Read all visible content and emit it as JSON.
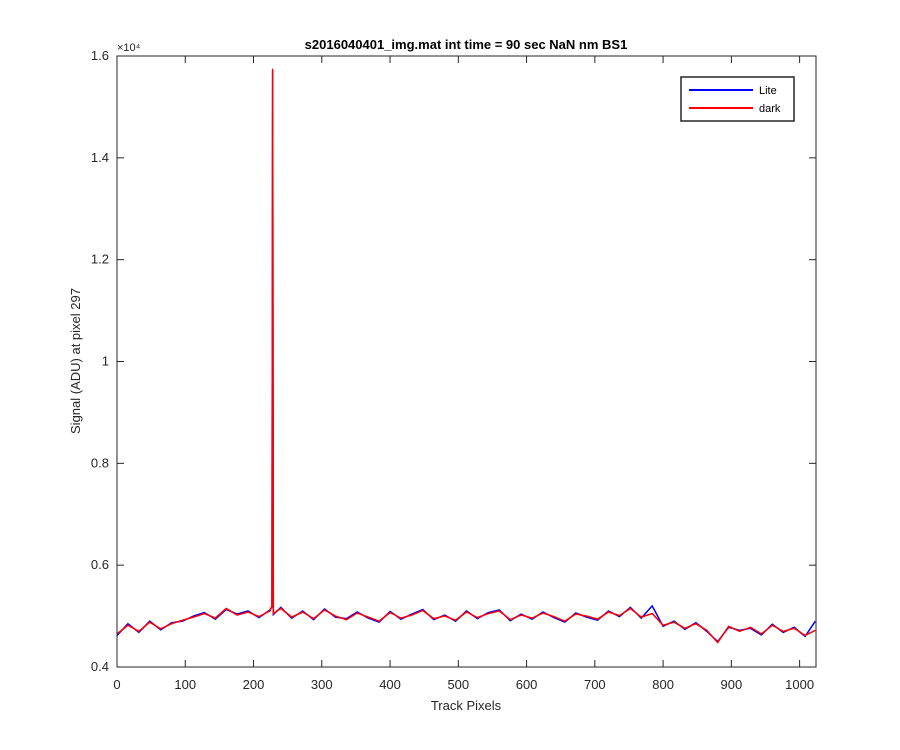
{
  "chart_data": {
    "type": "line",
    "title": "s2016040401_img.mat int time = 90 sec  NaN nm BS1",
    "xlabel": "Track Pixels",
    "ylabel": "Signal (ADU) at pixel 297",
    "y_multiplier": "×10⁴",
    "xlim": [
      0,
      1024
    ],
    "ylim": [
      4000,
      16000
    ],
    "xticks": [
      0,
      100,
      200,
      300,
      400,
      500,
      600,
      700,
      800,
      900,
      1000
    ],
    "yticks": [
      {
        "value": 4000,
        "label": "0.4"
      },
      {
        "value": 6000,
        "label": "0.6"
      },
      {
        "value": 8000,
        "label": "0.8"
      },
      {
        "value": 10000,
        "label": "1"
      },
      {
        "value": 12000,
        "label": "1.2"
      },
      {
        "value": 14000,
        "label": "1.4"
      },
      {
        "value": 16000,
        "label": "1.6"
      }
    ],
    "legend_position": "top-right",
    "x": [
      0,
      16,
      32,
      48,
      64,
      80,
      96,
      112,
      128,
      144,
      160,
      176,
      192,
      208,
      224,
      227,
      228,
      229,
      240,
      256,
      272,
      288,
      304,
      320,
      336,
      352,
      368,
      384,
      400,
      416,
      432,
      448,
      464,
      480,
      496,
      512,
      528,
      544,
      560,
      576,
      592,
      608,
      624,
      640,
      656,
      672,
      688,
      704,
      720,
      736,
      752,
      768,
      784,
      800,
      816,
      832,
      848,
      864,
      880,
      896,
      912,
      928,
      944,
      960,
      976,
      992,
      1008,
      1023
    ],
    "series": [
      {
        "name": "Lite",
        "color": "#0000ff",
        "values": [
          4620,
          4850,
          4680,
          4900,
          4730,
          4870,
          4900,
          5000,
          5070,
          4940,
          5130,
          5040,
          5100,
          4970,
          5120,
          5180,
          15700,
          5030,
          5170,
          4960,
          5100,
          4930,
          5140,
          4980,
          4950,
          5080,
          4960,
          4880,
          5090,
          4940,
          5040,
          5130,
          4930,
          5020,
          4900,
          5100,
          4950,
          5070,
          5120,
          4910,
          5040,
          4940,
          5080,
          4970,
          4880,
          5060,
          4980,
          4920,
          5100,
          4990,
          5170,
          4960,
          5200,
          4800,
          4900,
          4740,
          4870,
          4700,
          4500,
          4780,
          4720,
          4760,
          4630,
          4840,
          4680,
          4780,
          4600,
          4900
        ]
      },
      {
        "name": "dark",
        "color": "#ff0000",
        "values": [
          4650,
          4820,
          4700,
          4880,
          4750,
          4850,
          4920,
          4980,
          5050,
          4960,
          5150,
          5020,
          5080,
          4990,
          5100,
          5200,
          15750,
          5050,
          5150,
          4980,
          5080,
          4950,
          5120,
          5000,
          4930,
          5060,
          4980,
          4900,
          5070,
          4960,
          5020,
          5110,
          4950,
          5000,
          4920,
          5080,
          4970,
          5050,
          5100,
          4930,
          5020,
          4960,
          5060,
          4990,
          4900,
          5040,
          5000,
          4940,
          5080,
          5010,
          5150,
          4980,
          5050,
          4820,
          4880,
          4760,
          4850,
          4720,
          4480,
          4800,
          4700,
          4780,
          4650,
          4820,
          4700,
          4760,
          4620,
          4720
        ]
      }
    ]
  }
}
